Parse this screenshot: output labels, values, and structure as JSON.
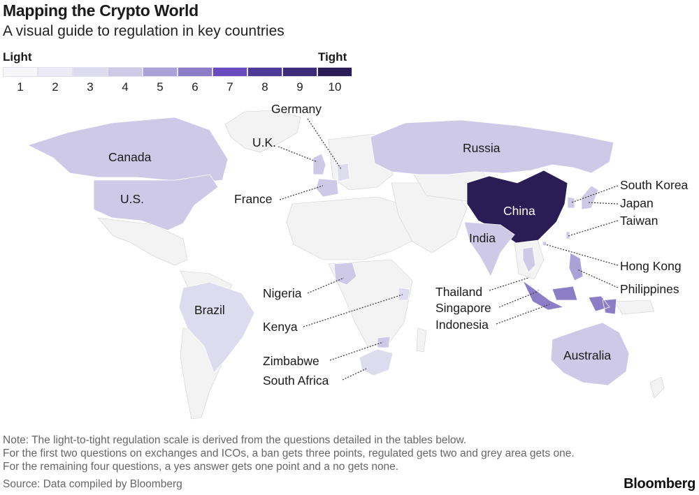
{
  "header": {
    "title": "Mapping the Crypto World",
    "subtitle": "A visual guide to regulation in key countries"
  },
  "legend": {
    "low_label": "Light",
    "high_label": "Tight",
    "steps": [
      {
        "value": "1",
        "color": "#f7f6fb"
      },
      {
        "value": "2",
        "color": "#ecebf5"
      },
      {
        "value": "3",
        "color": "#dddbee"
      },
      {
        "value": "4",
        "color": "#cdc9e6"
      },
      {
        "value": "5",
        "color": "#aaa1d6"
      },
      {
        "value": "6",
        "color": "#8b7ec7"
      },
      {
        "value": "7",
        "color": "#6a4bbf"
      },
      {
        "value": "8",
        "color": "#4d3a96"
      },
      {
        "value": "9",
        "color": "#3d2c7a"
      },
      {
        "value": "10",
        "color": "#2a1d56"
      }
    ]
  },
  "countries": {
    "canada": {
      "name": "Canada",
      "score": 4
    },
    "us": {
      "name": "U.S.",
      "score": 4
    },
    "brazil": {
      "name": "Brazil",
      "score": 3
    },
    "uk": {
      "name": "U.K.",
      "score": 4
    },
    "germany": {
      "name": "Germany",
      "score": 3
    },
    "france": {
      "name": "France",
      "score": 4
    },
    "russia": {
      "name": "Russia",
      "score": 4
    },
    "china": {
      "name": "China",
      "score": 10
    },
    "india": {
      "name": "India",
      "score": 4
    },
    "south_korea": {
      "name": "South Korea",
      "score": 4
    },
    "japan": {
      "name": "Japan",
      "score": 4
    },
    "taiwan": {
      "name": "Taiwan",
      "score": 4
    },
    "hong_kong": {
      "name": "Hong Kong",
      "score": 4
    },
    "philippines": {
      "name": "Philippines",
      "score": 5
    },
    "thailand": {
      "name": "Thailand",
      "score": 4
    },
    "singapore": {
      "name": "Singapore",
      "score": 4
    },
    "indonesia": {
      "name": "Indonesia",
      "score": 6
    },
    "australia": {
      "name": "Australia",
      "score": 4
    },
    "nigeria": {
      "name": "Nigeria",
      "score": 4
    },
    "kenya": {
      "name": "Kenya",
      "score": 3
    },
    "zimbabwe": {
      "name": "Zimbabwe",
      "score": 4
    },
    "south_africa": {
      "name": "South Africa",
      "score": 3
    }
  },
  "notes": {
    "line1": "Note: The light-to-tight regulation scale is derived from the questions detailed in the tables below.",
    "line2": "For the first two questions on exchanges and ICOs, a ban gets three points, regulated gets two and grey area gets one.",
    "line3": "For the remaining four questions, a yes answer gets one point and a no gets none."
  },
  "footer": {
    "source": "Source: Data compiled by Bloomberg",
    "brand": "Bloomberg"
  }
}
